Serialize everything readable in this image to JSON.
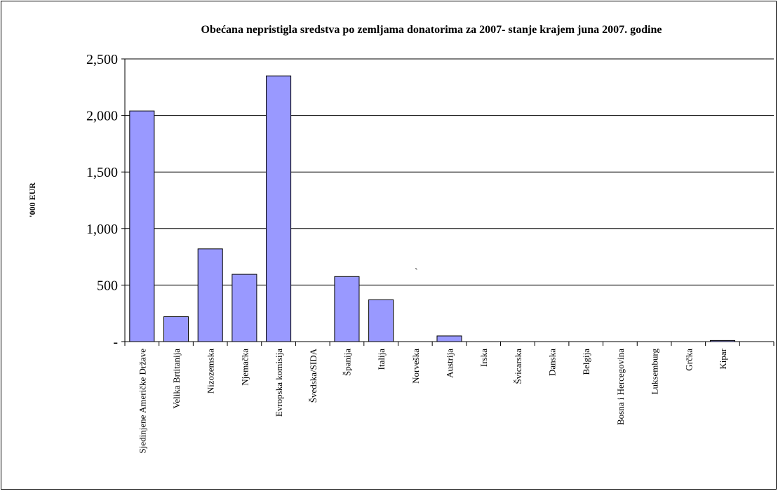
{
  "chart_data": {
    "type": "bar",
    "title": "Obećana nepristigla sredstva po zemljama donatorima za 2007- stanje krajem juna 2007. godine",
    "y_label": "'000 EUR",
    "annotation": "`",
    "categories": [
      "Sjedinjene Američke Države",
      "Velika Brtitanija",
      "Nizozemska",
      "Njemačka",
      "Evropska komisija",
      "Švedska/SIDA",
      "Španija",
      "Italija",
      "Norveška",
      "Austrija",
      "Irska",
      "Švicarska",
      "Danska",
      "Belgija",
      "Bosna i Hercegovina",
      "Luksemburg",
      "Grčka",
      "Kipar",
      null
    ],
    "values": [
      2040,
      220,
      820,
      595,
      2350,
      0,
      575,
      370,
      0,
      50,
      0,
      0,
      0,
      0,
      0,
      0,
      0,
      10,
      null
    ],
    "color": "#9999ff",
    "ylim": [
      0,
      2500
    ],
    "yticks": [
      {
        "value": 0,
        "label": "-"
      },
      500,
      {
        "value": 1000,
        "label": "1,000"
      },
      {
        "value": 1500,
        "label": "1,500"
      },
      {
        "value": 2000,
        "label": "2,000"
      },
      {
        "value": 2500,
        "label": "2,500"
      }
    ],
    "grid": true
  }
}
